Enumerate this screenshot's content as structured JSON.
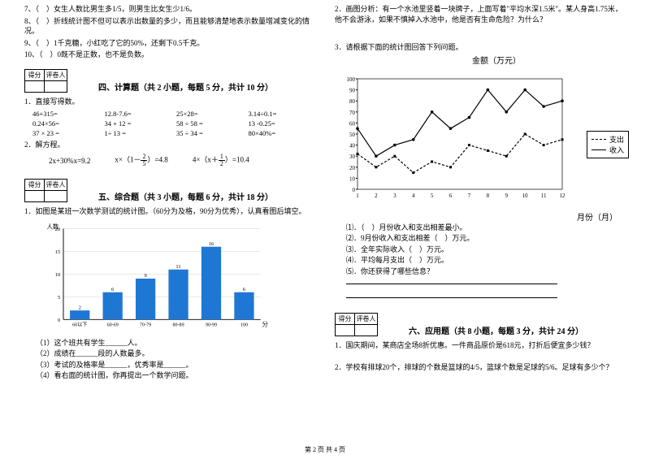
{
  "left": {
    "questions7to10": [
      "7、（　）女生人数比男生多1/5，则男生比女生少1/6。",
      "8、（　）折线统计图不但可以表示出数量的多少，而且能够清楚地表示数量增减变化的情况。",
      "9、（　）1千克糖，小红吃了它的50%，还剩下0.5千克。",
      "10、（　）0既不是正数，也不是负数。"
    ],
    "scoreHeader": {
      "a": "得分",
      "b": "评卷人"
    },
    "section4": "四、计算题（共 2 小题，每题 5 分，共计 10 分）",
    "calc_label": "1．直接写得数。",
    "calc": [
      "46+315=",
      "12.8-7.6=",
      "25×28=",
      "3.14÷0.1=",
      "0.24×56=",
      "34 + 12 =",
      "58 ÷ 58 =",
      "13 -0.25=",
      "37 × 23 =",
      "1÷ 13 =",
      "35 ÷ 34 =",
      "80×40%="
    ],
    "calc2_label": "2．解方程。",
    "eq1": "2x+30%x=9.2",
    "eq2_pre": "x×（1－",
    "eq2_frac": {
      "n": "2",
      "d": "5"
    },
    "eq2_post": "）=4.8",
    "eq3_pre": "4×（x＋",
    "eq3_frac": {
      "n": "1",
      "d": "2"
    },
    "eq3_post": "）=10.4",
    "section5": "五、综合题（共 3 小题，每题 6 分，共计 18 分）",
    "q5_1": "1．如图是某班一次数学测试的统计图。（60分为及格，90分为优秀），认真看图后填空。",
    "bar": {
      "ylabel": "人数",
      "xlabel": "分数",
      "ymax": 20,
      "ytick": 5,
      "categories": [
        "60以下",
        "60-69",
        "70-79",
        "80-89",
        "90-99",
        "100"
      ],
      "values": [
        2,
        6,
        9,
        11,
        16,
        6
      ],
      "value_labels_top": [
        "2",
        "6",
        "9",
        "11",
        "16",
        "6"
      ],
      "bar_color": "#1f77d4",
      "grid_color": "#cfcfcf",
      "axis_color": "#000000"
    },
    "bar_values_shown": [
      2,
      6,
      9,
      11,
      16,
      6
    ],
    "subq": [
      "（1）这个班共有学生______人。",
      "（2）成绩在______段的人数最多。",
      "（3）考试的及格率是______，优秀率是______。",
      "（4）看右面的统计图，你再提出一个数学问题。"
    ]
  },
  "right": {
    "q2": "2．画图分析：有一个水池里竖着一块牌子，上面写着\"平均水深1.5米\"。某人身高1.75米，他不会游泳，如果不慎掉入水池中，他是否有生命危险？为什么？",
    "q3": "3．请根据下面的统计图回答下列问题。",
    "chart_title": "金额（万元）",
    "line": {
      "ymax": 100,
      "ymin": 0,
      "ytick": 10,
      "x": [
        1,
        2,
        3,
        4,
        5,
        6,
        7,
        8,
        9,
        10,
        11,
        12
      ],
      "income": [
        55,
        30,
        40,
        45,
        70,
        55,
        65,
        90,
        70,
        90,
        75,
        80
      ],
      "expense": [
        32,
        20,
        30,
        15,
        25,
        20,
        40,
        35,
        30,
        50,
        40,
        45
      ],
      "income_color": "#000000",
      "expense_color": "#000000",
      "grid_color": "#e0e0e0",
      "bg": "#ffffff"
    },
    "legend": {
      "expense": "支出",
      "income": "收入"
    },
    "xlabel": "月份（月）",
    "subq": [
      "⑴．（　）月份收入和支出相差最小。",
      "⑵．9月份收入和支出相差（　）万元。",
      "⑶．全年实际收入（　）万元。",
      "⑷．平均每月支出（　）万元。",
      "⑸．你还获得了哪些信息？"
    ],
    "section6": "六、应用题（共 8 小题，每题 3 分，共计 24 分）",
    "q6_1": "1．国庆期间，某商店全场8折优惠。一件商品原价是618元，打折后便宜多少钱？",
    "q6_2": "2．学校有排球20个，排球的个数是篮球的4/5，篮球个数是足球的5/6。足球有多少个？"
  },
  "footer": "第 2 页 共 4 页"
}
